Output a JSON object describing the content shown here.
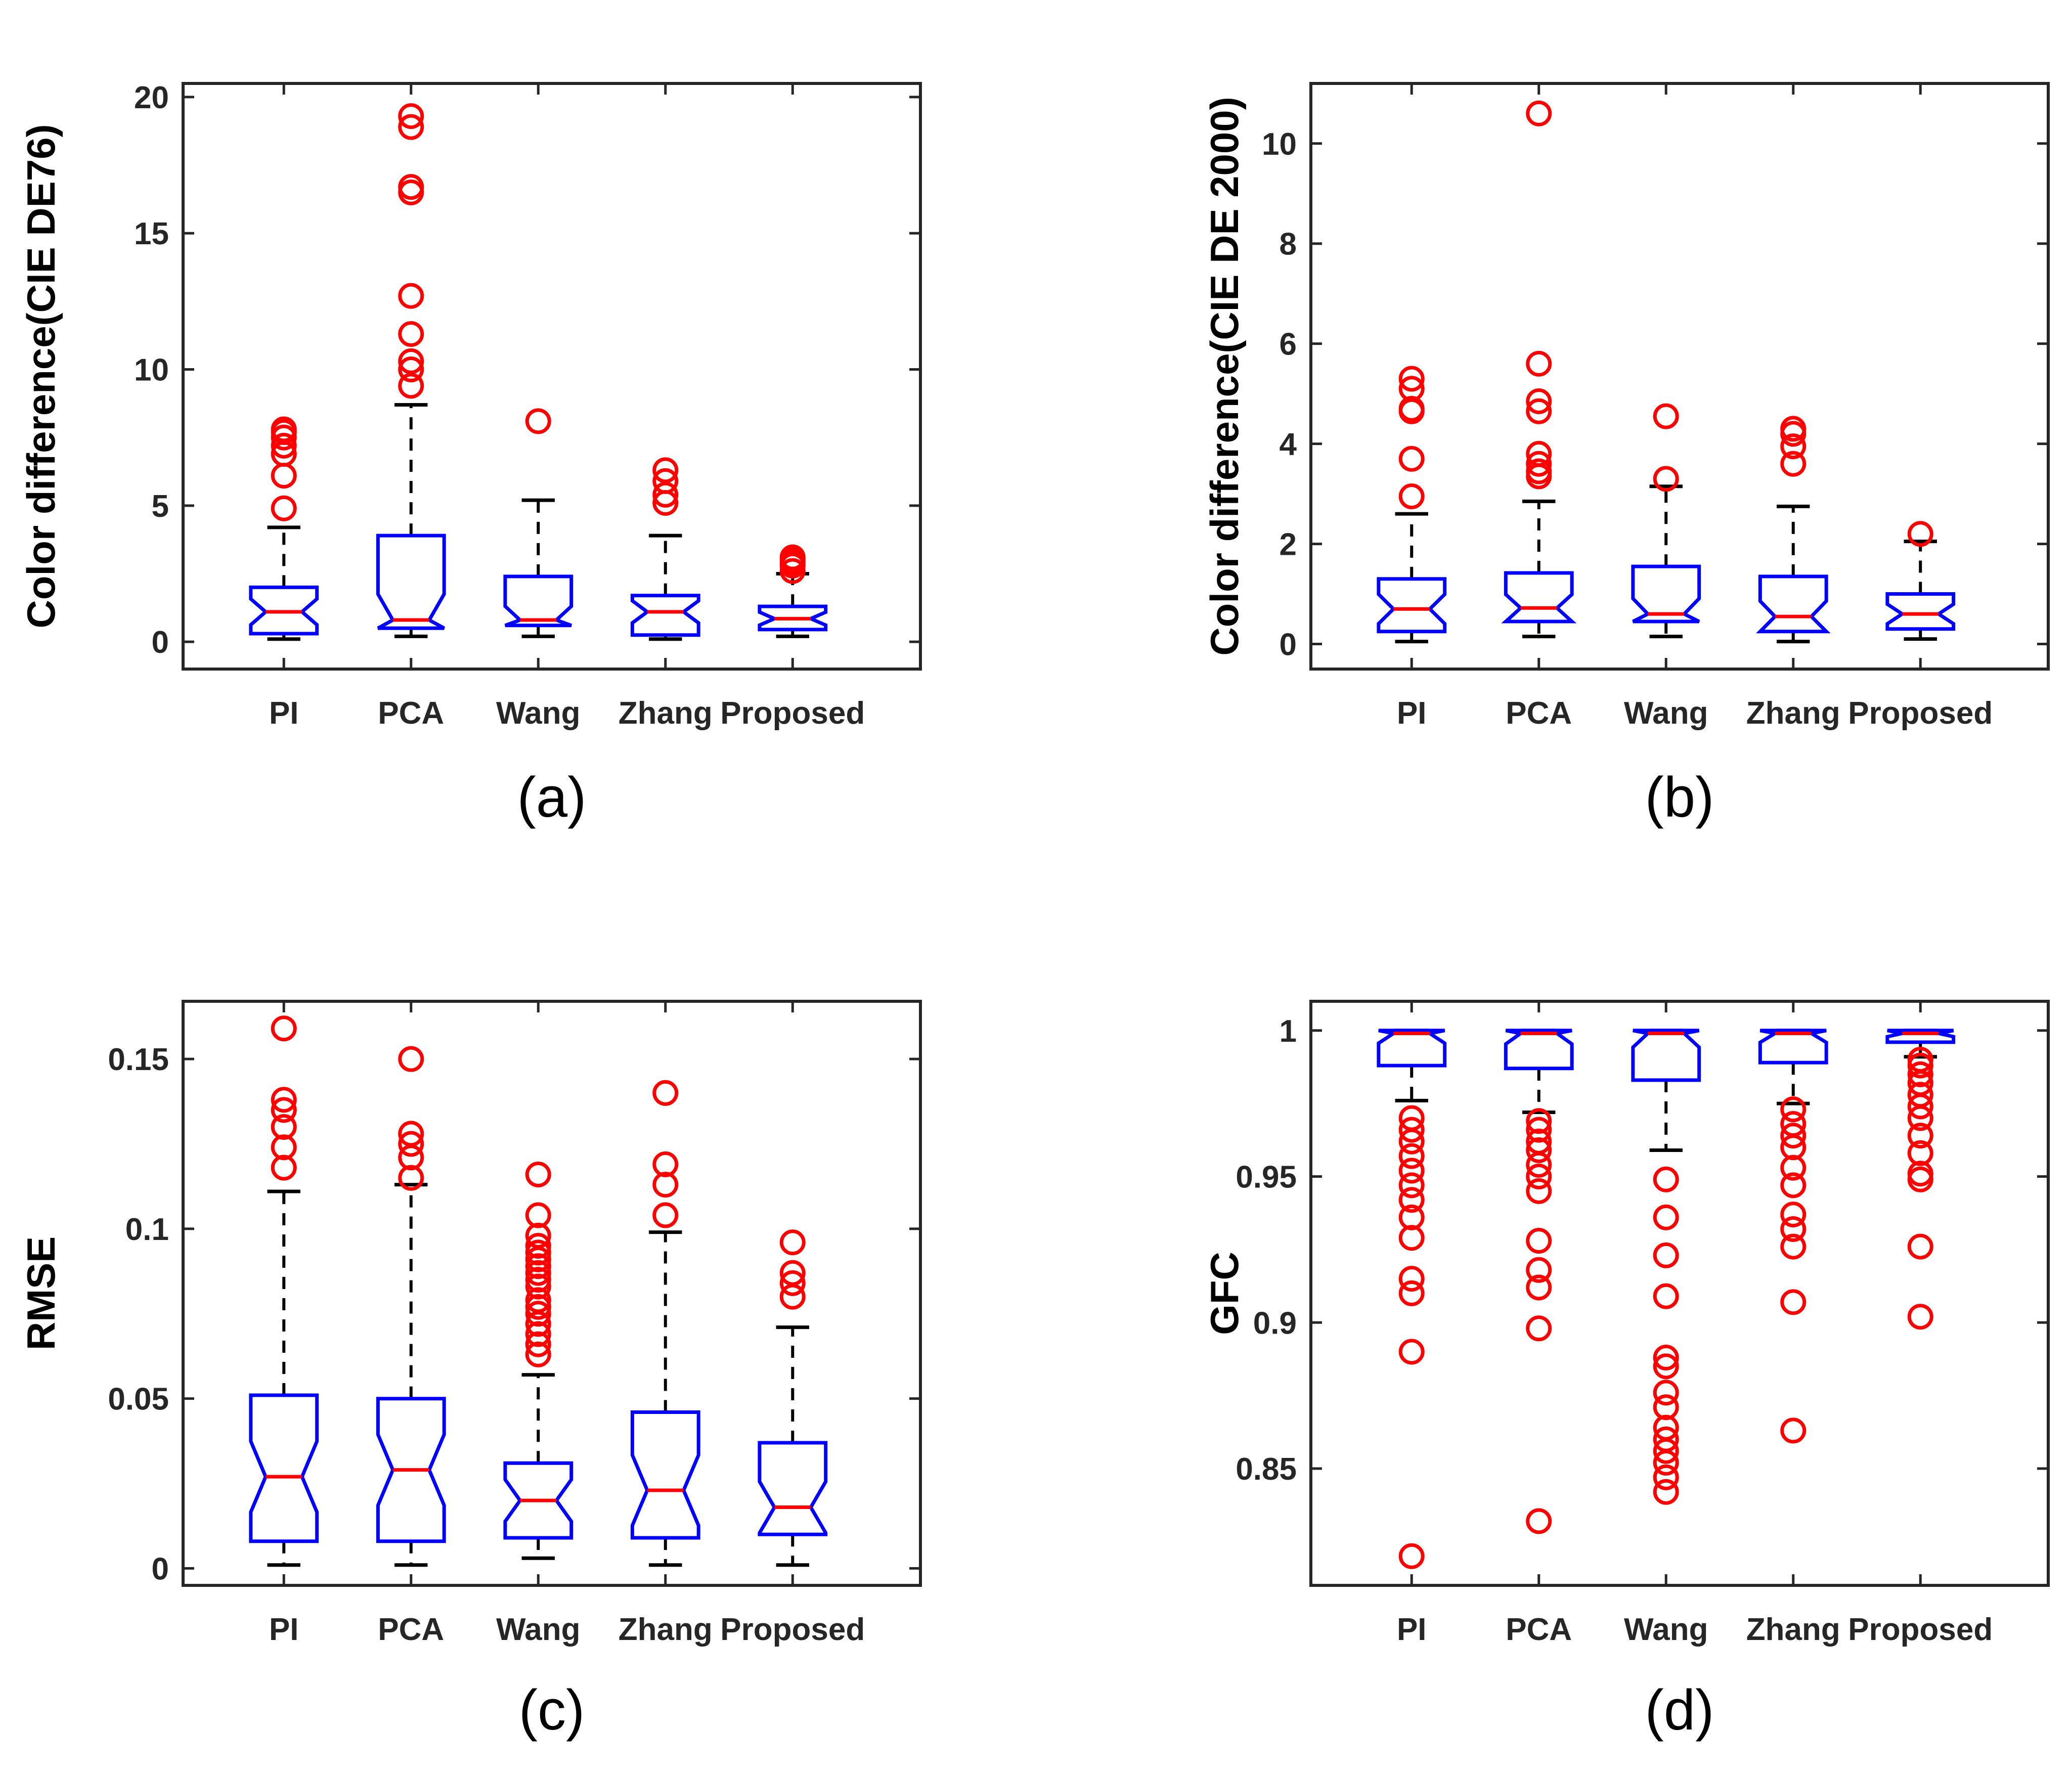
{
  "colors": {
    "box": "#0000ff",
    "median": "#ff0000",
    "whisker": "#000000",
    "outlier": "#ff0000"
  },
  "chart_data": [
    {
      "type": "boxplot",
      "panel_label": "(a)",
      "xlabel": "",
      "ylabel": "Color difference(CIE DE76)",
      "ylim": [
        -1,
        20.5
      ],
      "yticks": [
        0,
        5,
        10,
        15,
        20
      ],
      "ytick_labels": [
        "0",
        "5",
        "10",
        "15",
        "20"
      ],
      "notched": true,
      "categories": [
        "PI",
        "PCA",
        "Wang",
        "Zhang",
        "Proposed"
      ],
      "boxes": [
        {
          "category": "PI",
          "min": 0.1,
          "q1": 0.3,
          "median": 1.1,
          "q3": 2.0,
          "max": 4.2,
          "outliers": [
            4.9,
            6.1,
            6.9,
            7.2,
            7.5,
            7.7,
            7.8
          ]
        },
        {
          "category": "PCA",
          "min": 0.2,
          "q1": 0.5,
          "median": 0.8,
          "q3": 3.9,
          "max": 8.7,
          "outliers": [
            9.4,
            10.0,
            10.3,
            11.3,
            12.7,
            16.5,
            16.7,
            18.9,
            19.3
          ]
        },
        {
          "category": "Wang",
          "min": 0.2,
          "q1": 0.6,
          "median": 0.8,
          "q3": 2.4,
          "max": 5.2,
          "outliers": [
            8.1
          ]
        },
        {
          "category": "Zhang",
          "min": 0.1,
          "q1": 0.25,
          "median": 1.1,
          "q3": 1.7,
          "max": 3.9,
          "outliers": [
            5.1,
            5.4,
            5.9,
            6.3
          ]
        },
        {
          "category": "Proposed",
          "min": 0.2,
          "q1": 0.45,
          "median": 0.85,
          "q3": 1.3,
          "max": 2.5,
          "outliers": [
            2.6,
            2.8,
            2.9,
            3.0,
            3.1
          ]
        }
      ]
    },
    {
      "type": "boxplot",
      "panel_label": "(b)",
      "xlabel": "",
      "ylabel": "Color difference(CIE DE 2000)",
      "ylim": [
        -0.5,
        11.2
      ],
      "yticks": [
        0,
        2,
        4,
        6,
        8,
        10
      ],
      "ytick_labels": [
        "0",
        "2",
        "4",
        "6",
        "8",
        "10"
      ],
      "notched": true,
      "categories": [
        "PI",
        "PCA",
        "Wang",
        "Zhang",
        "Proposed"
      ],
      "boxes": [
        {
          "category": "PI",
          "min": 0.05,
          "q1": 0.25,
          "median": 0.7,
          "q3": 1.3,
          "max": 2.6,
          "outliers": [
            2.95,
            3.7,
            4.65,
            4.7,
            5.1,
            5.3
          ]
        },
        {
          "category": "PCA",
          "min": 0.15,
          "q1": 0.45,
          "median": 0.72,
          "q3": 1.42,
          "max": 2.85,
          "outliers": [
            3.35,
            3.45,
            3.6,
            3.8,
            4.65,
            4.85,
            5.6,
            10.6
          ]
        },
        {
          "category": "Wang",
          "min": 0.15,
          "q1": 0.45,
          "median": 0.6,
          "q3": 1.55,
          "max": 3.15,
          "outliers": [
            3.3,
            4.55
          ]
        },
        {
          "category": "Zhang",
          "min": 0.05,
          "q1": 0.25,
          "median": 0.55,
          "q3": 1.35,
          "max": 2.75,
          "outliers": [
            3.6,
            3.95,
            4.2,
            4.3
          ]
        },
        {
          "category": "Proposed",
          "min": 0.1,
          "q1": 0.3,
          "median": 0.6,
          "q3": 1.0,
          "max": 2.05,
          "outliers": [
            2.2
          ]
        }
      ]
    },
    {
      "type": "boxplot",
      "panel_label": "(c)",
      "xlabel": "",
      "ylabel": "RMSE",
      "ylim": [
        -0.005,
        0.167
      ],
      "yticks": [
        0,
        0.05,
        0.1,
        0.15
      ],
      "ytick_labels": [
        "0",
        "0.05",
        "0.1",
        "0.15"
      ],
      "notched": true,
      "categories": [
        "PI",
        "PCA",
        "Wang",
        "Zhang",
        "Proposed"
      ],
      "boxes": [
        {
          "category": "PI",
          "min": 0.001,
          "q1": 0.008,
          "median": 0.027,
          "q3": 0.051,
          "max": 0.111,
          "outliers": [
            0.118,
            0.124,
            0.13,
            0.135,
            0.138,
            0.159
          ]
        },
        {
          "category": "PCA",
          "min": 0.001,
          "q1": 0.008,
          "median": 0.029,
          "q3": 0.05,
          "max": 0.113,
          "outliers": [
            0.115,
            0.121,
            0.125,
            0.128,
            0.15
          ]
        },
        {
          "category": "Wang",
          "min": 0.003,
          "q1": 0.009,
          "median": 0.02,
          "q3": 0.031,
          "max": 0.057,
          "outliers": [
            0.063,
            0.066,
            0.069,
            0.072,
            0.075,
            0.077,
            0.079,
            0.083,
            0.085,
            0.087,
            0.089,
            0.091,
            0.093,
            0.095,
            0.098,
            0.104,
            0.116
          ]
        },
        {
          "category": "Zhang",
          "min": 0.001,
          "q1": 0.009,
          "median": 0.023,
          "q3": 0.046,
          "max": 0.099,
          "outliers": [
            0.104,
            0.113,
            0.119,
            0.14
          ]
        },
        {
          "category": "Proposed",
          "min": 0.001,
          "q1": 0.01,
          "median": 0.018,
          "q3": 0.037,
          "max": 0.071,
          "outliers": [
            0.08,
            0.084,
            0.087,
            0.096
          ]
        }
      ]
    },
    {
      "type": "boxplot",
      "panel_label": "(d)",
      "xlabel": "",
      "ylabel": "GFC",
      "ylim": [
        0.81,
        1.01
      ],
      "yticks": [
        0.85,
        0.9,
        0.95,
        1
      ],
      "ytick_labels": [
        "0.85",
        "0.9",
        "0.95",
        "1"
      ],
      "notched": true,
      "categories": [
        "PI",
        "PCA",
        "Wang",
        "Zhang",
        "Proposed"
      ],
      "boxes": [
        {
          "category": "PI",
          "min": 0.976,
          "q1": 0.988,
          "median": 0.999,
          "q3": 1.0,
          "max": 1.0,
          "outliers": [
            0.97,
            0.966,
            0.962,
            0.957,
            0.952,
            0.947,
            0.942,
            0.936,
            0.929,
            0.915,
            0.91,
            0.89,
            0.82
          ]
        },
        {
          "category": "PCA",
          "min": 0.972,
          "q1": 0.987,
          "median": 0.999,
          "q3": 1.0,
          "max": 1.0,
          "outliers": [
            0.969,
            0.966,
            0.962,
            0.959,
            0.954,
            0.95,
            0.945,
            0.928,
            0.918,
            0.912,
            0.898,
            0.832
          ]
        },
        {
          "category": "Wang",
          "min": 0.959,
          "q1": 0.983,
          "median": 0.999,
          "q3": 1.0,
          "max": 1.0,
          "outliers": [
            0.949,
            0.936,
            0.923,
            0.909,
            0.888,
            0.885,
            0.876,
            0.871,
            0.864,
            0.86,
            0.856,
            0.852,
            0.847,
            0.842
          ]
        },
        {
          "category": "Zhang",
          "min": 0.975,
          "q1": 0.989,
          "median": 0.999,
          "q3": 1.0,
          "max": 1.0,
          "outliers": [
            0.973,
            0.968,
            0.964,
            0.96,
            0.953,
            0.947,
            0.937,
            0.932,
            0.926,
            0.907,
            0.863
          ]
        },
        {
          "category": "Proposed",
          "min": 0.991,
          "q1": 0.996,
          "median": 0.999,
          "q3": 1.0,
          "max": 1.0,
          "outliers": [
            0.99,
            0.988,
            0.985,
            0.982,
            0.978,
            0.974,
            0.97,
            0.964,
            0.958,
            0.951,
            0.949,
            0.926,
            0.902
          ]
        }
      ]
    }
  ]
}
